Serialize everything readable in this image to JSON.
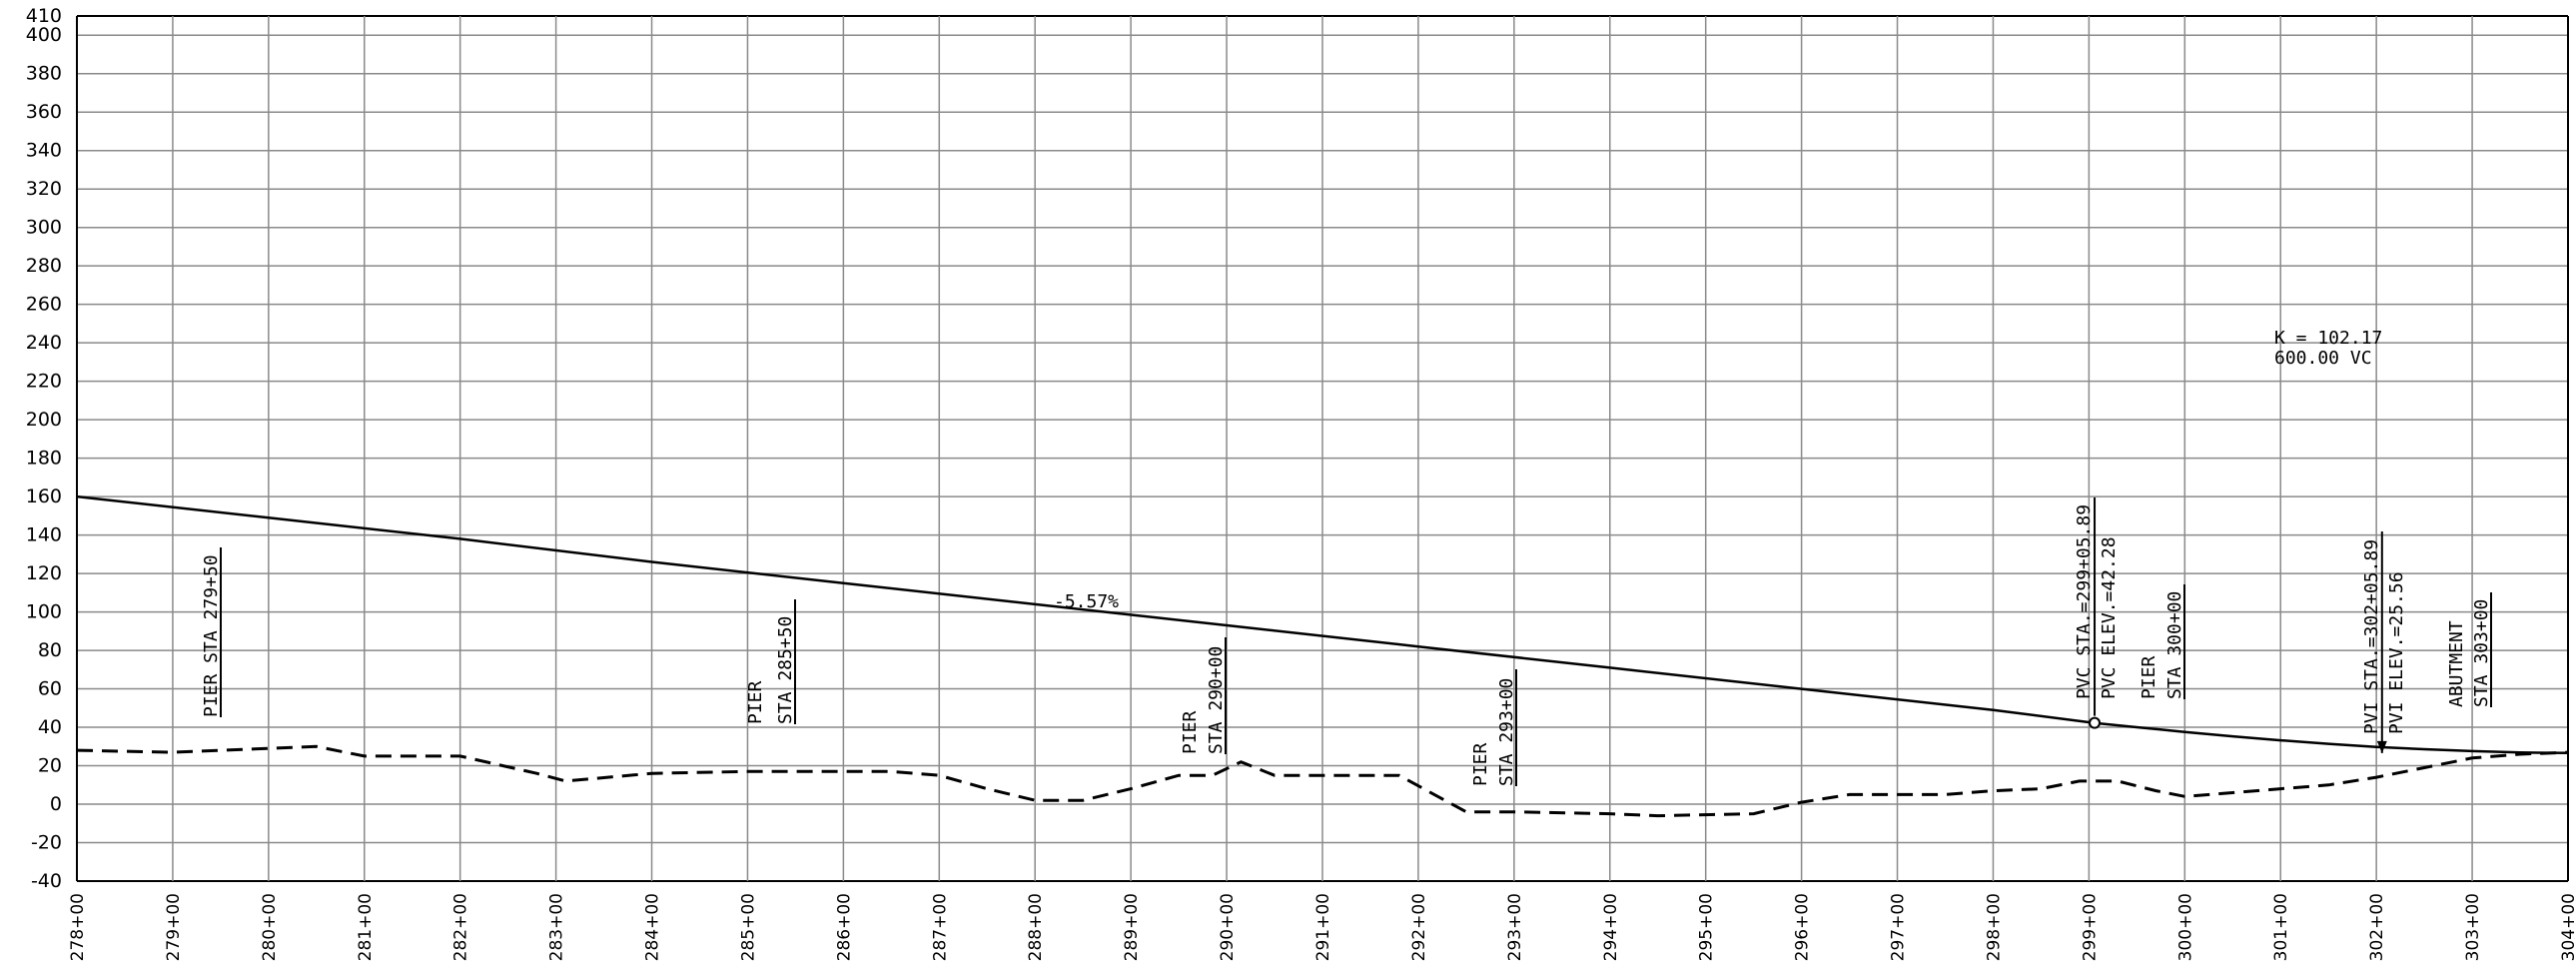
{
  "chart_data": {
    "type": "line",
    "title": "",
    "xlabel": "",
    "ylabel": "",
    "xlim": [
      278,
      304
    ],
    "ylim": [
      -40,
      410
    ],
    "grid": true,
    "x_ticks": [
      "278+00",
      "279+00",
      "280+00",
      "281+00",
      "282+00",
      "283+00",
      "284+00",
      "285+00",
      "286+00",
      "287+00",
      "288+00",
      "289+00",
      "290+00",
      "291+00",
      "292+00",
      "293+00",
      "294+00",
      "295+00",
      "296+00",
      "297+00",
      "298+00",
      "299+00",
      "300+00",
      "301+00",
      "302+00",
      "303+00",
      "304+00"
    ],
    "y_ticks": [
      "410",
      "400",
      "380",
      "360",
      "340",
      "320",
      "300",
      "280",
      "260",
      "240",
      "220",
      "200",
      "180",
      "160",
      "140",
      "120",
      "100",
      "80",
      "60",
      "40",
      "20",
      "0",
      "-20",
      "-40"
    ],
    "series": [
      {
        "style": "solid",
        "x": [
          278,
          280,
          282,
          284,
          286,
          288,
          290,
          292,
          294,
          296,
          298,
          299.0589,
          299.5,
          300,
          300.5,
          301,
          301.5,
          302,
          302.5,
          303,
          303.5,
          304
        ],
        "values": [
          160,
          149,
          138,
          126,
          115,
          104,
          93,
          82,
          71,
          60,
          49,
          42.28,
          40,
          37.6,
          35.3,
          33.2,
          31.4,
          29.8,
          28.6,
          27.6,
          26.9,
          26.6
        ]
      },
      {
        "style": "dashed",
        "x": [
          278,
          279,
          280,
          280.5,
          281,
          282,
          282.8,
          283.1,
          284,
          285,
          286,
          286.5,
          287,
          287.5,
          288,
          288.5,
          289,
          289.5,
          289.85,
          290.15,
          290.5,
          291,
          291.8,
          292.5,
          293,
          294,
          294.5,
          295.5,
          296,
          296.5,
          297,
          297.5,
          298,
          298.5,
          298.9,
          299.3,
          299.7,
          300,
          300.5,
          301,
          301.5,
          302,
          302.5,
          303,
          303.5,
          304
        ],
        "values": [
          28,
          27,
          29,
          30,
          25,
          25,
          16,
          12,
          16,
          17,
          17,
          17,
          15,
          8,
          2,
          2,
          8,
          15,
          15,
          22,
          15,
          15,
          15,
          -4,
          -4,
          -5,
          -6,
          -5,
          1,
          5,
          5,
          5,
          7,
          8,
          12,
          12,
          7,
          4,
          6,
          8,
          10,
          14,
          19,
          24,
          26,
          27
        ]
      }
    ],
    "points": [
      {
        "x": 299.0589,
        "y": 42.28
      },
      {
        "x": 302.0589,
        "y": 25.56
      }
    ],
    "annotations": {
      "grade": "-5.57%",
      "k_value": "K = 102.17",
      "vc_length": "600.00 VC",
      "pier_1": "PIER STA 279+50",
      "pier_2_line1": "PIER",
      "pier_2_line2": "STA 285+50",
      "pier_3_line1": "PIER",
      "pier_3_line2": "STA 290+00",
      "pier_4_line1": "PIER",
      "pier_4_line2": "STA 293+00",
      "pvc_sta": "PVC STA.=299+05.89",
      "pvc_elev": "PVC ELEV.=42.28",
      "pier_5_line1": "PIER",
      "pier_5_line2": "STA 300+00",
      "pvi_sta": "PVI STA.=302+05.89",
      "pvi_elev": "PVI ELEV.=25.56",
      "abutment_line1": "ABUTMENT",
      "abutment_line2": "STA 303+00"
    }
  }
}
